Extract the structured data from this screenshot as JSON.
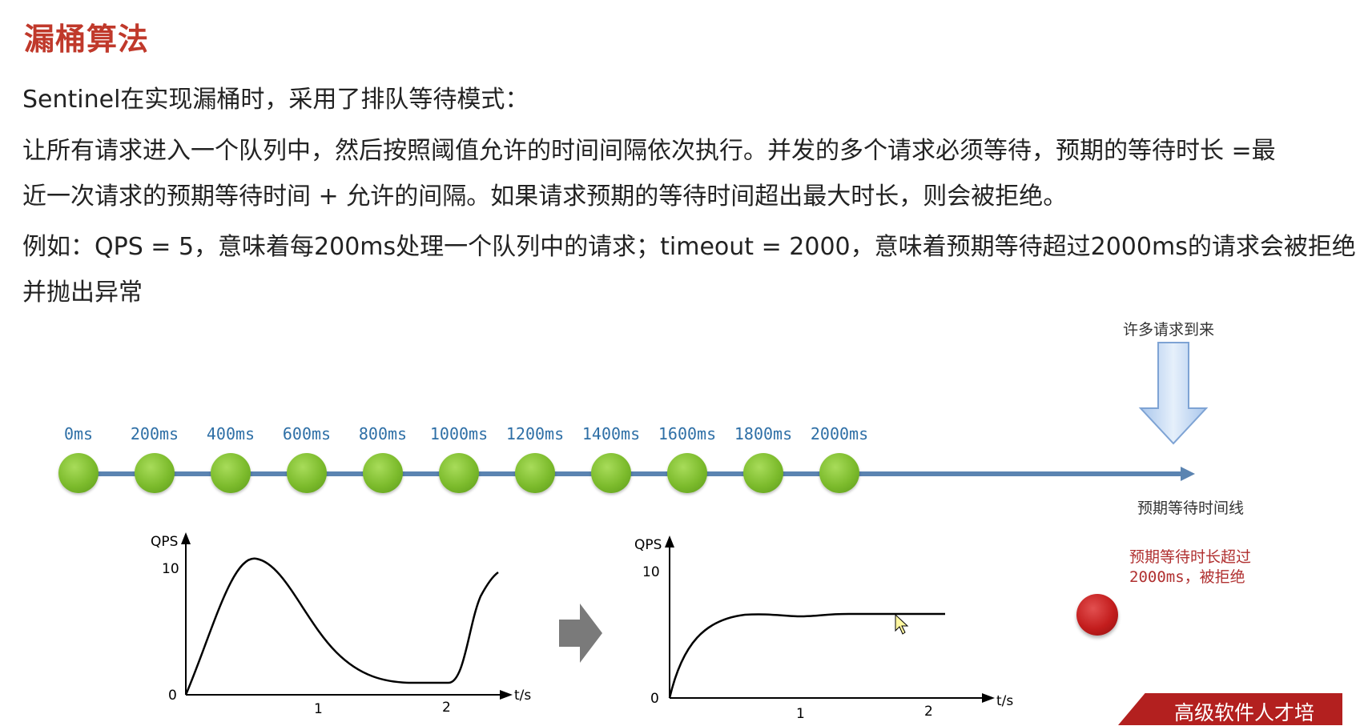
{
  "title": "漏桶算法",
  "paragraphs": {
    "p1": "Sentinel在实现漏桶时，采用了排队等待模式：",
    "p2_line1": "让所有请求进入一个队列中，然后按照阈值允许的时间间隔依次执行。并发的多个请求必须等待，预期的等待时长 =最",
    "p2_line2": "近一次请求的预期等待时间 + 允许的间隔。如果请求预期的等待时间超出最大时长，则会被拒绝。",
    "p3_line1": "例如：QPS = 5，意味着每200ms处理一个队列中的请求；timeout = 2000，意味着预期等待超过2000ms的请求会被拒绝",
    "p3_line2": "并抛出异常"
  },
  "timeline": {
    "ticks": [
      "0ms",
      "200ms",
      "400ms",
      "600ms",
      "800ms",
      "1000ms",
      "1200ms",
      "1400ms",
      "1600ms",
      "1800ms",
      "2000ms"
    ],
    "axis_label": "预期等待时间线",
    "arrival_label": "许多请求到来",
    "reject_label_line1": "预期等待时长超过",
    "reject_label_line2": "2000ms，被拒绝"
  },
  "charts": {
    "left": {
      "ylabel": "QPS",
      "xlabel": "t/s",
      "yticks": [
        "10",
        "0"
      ],
      "xticks": [
        "1",
        "2"
      ]
    },
    "right": {
      "ylabel": "QPS",
      "xlabel": "t/s",
      "yticks": [
        "10",
        "0"
      ],
      "xticks": [
        "1",
        "2"
      ]
    }
  },
  "colors": {
    "title": "#c0392b",
    "dot": "#7cbb2c",
    "timeline_line": "#5b84b1",
    "tick_text": "#2e6fa6",
    "reject_text": "#b03030",
    "red_ball": "#c31d1d",
    "arrow_gray": "#7a7a7a",
    "brand_bg": "#b3201f"
  },
  "brand_text": "高级软件人才培"
}
